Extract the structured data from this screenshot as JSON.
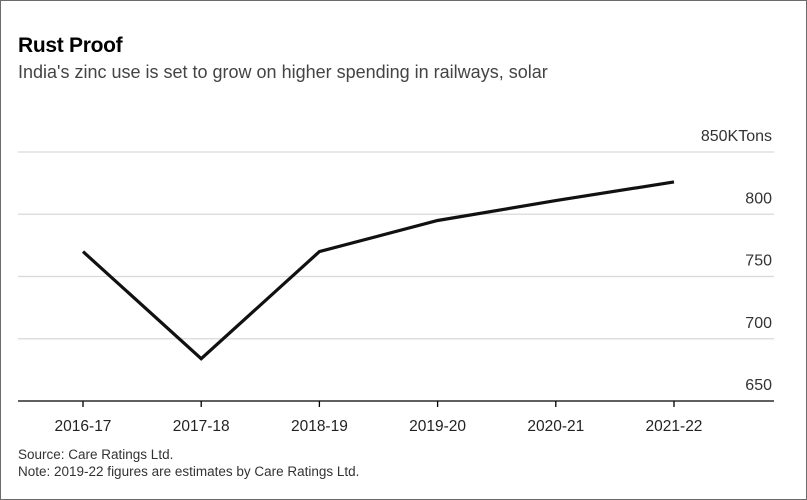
{
  "chart_data": {
    "type": "line",
    "title": "Rust Proof",
    "subtitle": "India's zinc use is set to grow on higher spending in railways, solar",
    "categories": [
      "2016-17",
      "2017-18",
      "2018-19",
      "2019-20",
      "2020-21",
      "2021-22"
    ],
    "series": [
      {
        "values": [
          770,
          684,
          770,
          795,
          811,
          826
        ]
      }
    ],
    "y_unit": "KTons",
    "ylim": [
      650,
      850
    ],
    "y_ticks": [
      650,
      700,
      750,
      800,
      850
    ],
    "y_tick_labels": [
      "650",
      "700",
      "750",
      "800",
      "850KTons"
    ],
    "grid": true,
    "legend": "none",
    "line_color": "#111111",
    "grid_color": "#d9d9d9",
    "axis_color": "#000000"
  },
  "footer": {
    "source": "Source: Care Ratings Ltd.",
    "note": "Note: 2019-22 figures are estimates by Care Ratings Ltd."
  }
}
